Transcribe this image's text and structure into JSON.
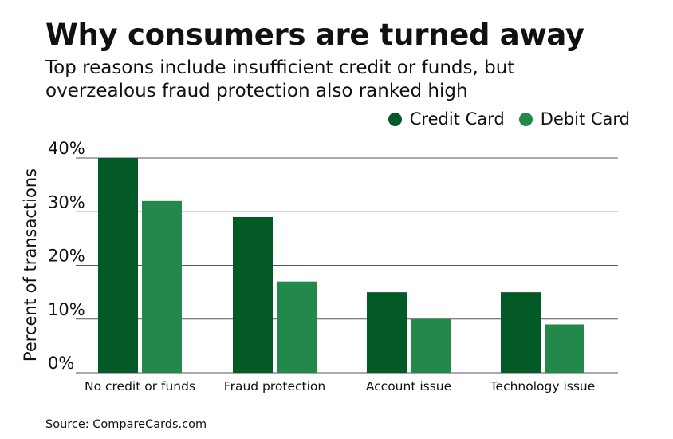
{
  "header": {
    "title": "Why consumers are turned away",
    "subtitle": "Top reasons include insufficient credit or funds, but overzealous fraud protection also ranked high"
  },
  "footer": {
    "source": "Source: CompareCards.com"
  },
  "colors": {
    "credit": "#045A27",
    "debit": "#22894A",
    "grid": "#555555"
  },
  "chart_data": {
    "type": "bar",
    "title": "Why consumers are turned away",
    "subtitle": "Top reasons include insufficient credit or funds, but overzealous fraud protection also ranked high",
    "ylabel": "Percent of transactions",
    "xlabel": "",
    "ylim": [
      0,
      40
    ],
    "yticks": [
      0,
      10,
      20,
      30,
      40
    ],
    "ytick_labels": [
      "0%",
      "10%",
      "20%",
      "30%",
      "40%"
    ],
    "categories": [
      "No credit or funds",
      "Fraud protection",
      "Account issue",
      "Technology issue"
    ],
    "series": [
      {
        "name": "Credit Card",
        "values": [
          40,
          29,
          15,
          15
        ]
      },
      {
        "name": "Debit Card",
        "values": [
          32,
          17,
          10,
          9
        ]
      }
    ],
    "legend_position": "top-right",
    "grid": true
  }
}
